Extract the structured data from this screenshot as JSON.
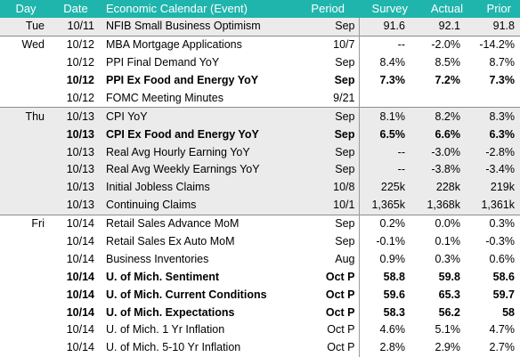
{
  "headers": {
    "day": "Day",
    "date": "Date",
    "event": "Economic Calendar (Event)",
    "period": "Period",
    "survey": "Survey",
    "actual": "Actual",
    "prior": "Prior"
  },
  "rows": [
    {
      "day": "Tue",
      "date": "10/11",
      "event": "NFIB Small Business Optimism",
      "period": "Sep",
      "survey": "91.6",
      "actual": "92.1",
      "prior": "91.8"
    },
    {
      "day": "Wed",
      "date": "10/12",
      "event": "MBA Mortgage Applications",
      "period": "10/7",
      "survey": "--",
      "actual": "-2.0%",
      "prior": "-14.2%"
    },
    {
      "day": "",
      "date": "10/12",
      "event": "PPI Final Demand YoY",
      "period": "Sep",
      "survey": "8.4%",
      "actual": "8.5%",
      "prior": "8.7%"
    },
    {
      "day": "",
      "date": "10/12",
      "event": "PPI Ex Food and Energy YoY",
      "period": "Sep",
      "survey": "7.3%",
      "actual": "7.2%",
      "prior": "7.3%"
    },
    {
      "day": "",
      "date": "10/12",
      "event": "FOMC Meeting Minutes",
      "period": "9/21",
      "survey": "",
      "actual": "",
      "prior": ""
    },
    {
      "day": "Thu",
      "date": "10/13",
      "event": "CPI YoY",
      "period": "Sep",
      "survey": "8.1%",
      "actual": "8.2%",
      "prior": "8.3%"
    },
    {
      "day": "",
      "date": "10/13",
      "event": "CPI Ex Food and Energy YoY",
      "period": "Sep",
      "survey": "6.5%",
      "actual": "6.6%",
      "prior": "6.3%"
    },
    {
      "day": "",
      "date": "10/13",
      "event": "Real Avg Hourly Earning YoY",
      "period": "Sep",
      "survey": "--",
      "actual": "-3.0%",
      "prior": "-2.8%"
    },
    {
      "day": "",
      "date": "10/13",
      "event": "Real Avg Weekly Earnings YoY",
      "period": "Sep",
      "survey": "--",
      "actual": "-3.8%",
      "prior": "-3.4%"
    },
    {
      "day": "",
      "date": "10/13",
      "event": "Initial Jobless Claims",
      "period": "10/8",
      "survey": "225k",
      "actual": "228k",
      "prior": "219k"
    },
    {
      "day": "",
      "date": "10/13",
      "event": "Continuing Claims",
      "period": "10/1",
      "survey": "1,365k",
      "actual": "1,368k",
      "prior": "1,361k"
    },
    {
      "day": "Fri",
      "date": "10/14",
      "event": "Retail Sales Advance MoM",
      "period": "Sep",
      "survey": "0.2%",
      "actual": "0.0%",
      "prior": "0.3%"
    },
    {
      "day": "",
      "date": "10/14",
      "event": "Retail Sales Ex Auto MoM",
      "period": "Sep",
      "survey": "-0.1%",
      "actual": "0.1%",
      "prior": "-0.3%"
    },
    {
      "day": "",
      "date": "10/14",
      "event": "Business Inventories",
      "period": "Aug",
      "survey": "0.9%",
      "actual": "0.3%",
      "prior": "0.6%"
    },
    {
      "day": "",
      "date": "10/14",
      "event": "U. of Mich. Sentiment",
      "period": "Oct P",
      "survey": "58.8",
      "actual": "59.8",
      "prior": "58.6"
    },
    {
      "day": "",
      "date": "10/14",
      "event": "U. of Mich. Current Conditions",
      "period": "Oct P",
      "survey": "59.6",
      "actual": "65.3",
      "prior": "59.7"
    },
    {
      "day": "",
      "date": "10/14",
      "event": "U. of Mich. Expectations",
      "period": "Oct P",
      "survey": "58.3",
      "actual": "56.2",
      "prior": "58"
    },
    {
      "day": "",
      "date": "10/14",
      "event": "U. of Mich. 1 Yr Inflation",
      "period": "Oct P",
      "survey": "4.6%",
      "actual": "5.1%",
      "prior": "4.7%"
    },
    {
      "day": "",
      "date": "10/14",
      "event": "U. of Mich. 5-10 Yr Inflation",
      "period": "Oct P",
      "survey": "2.8%",
      "actual": "2.9%",
      "prior": "2.7%"
    }
  ],
  "colors": {
    "header_bg": "#1fb5ac",
    "header_text": "#ffffff",
    "shaded_row": "#ebebeb"
  }
}
